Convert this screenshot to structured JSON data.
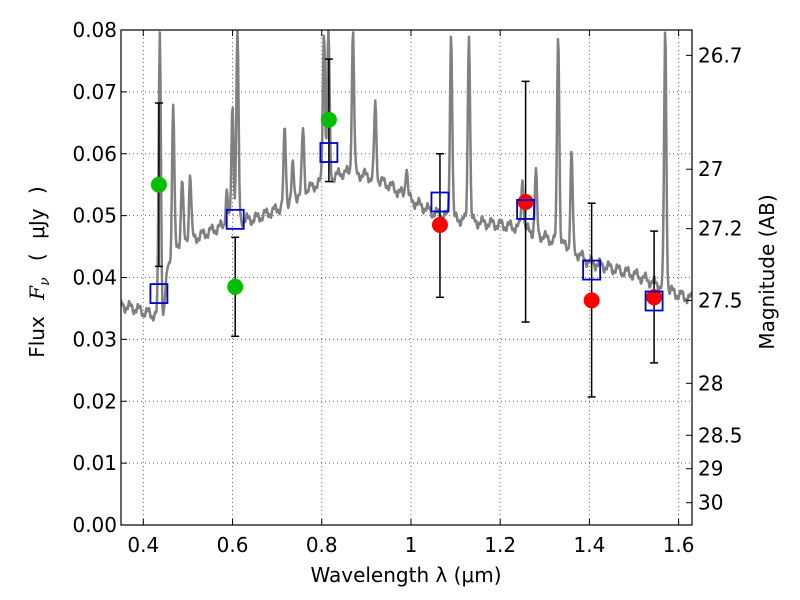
{
  "chart_data": {
    "type": "scatter",
    "title": "",
    "xlabel": "Wavelength  λ (μm)",
    "ylabel_parts": [
      "Flux",
      "F",
      "ν",
      "(",
      "μJy",
      ")"
    ],
    "y2label": "Magnitude (AB)",
    "xlim": [
      0.35,
      1.63
    ],
    "ylim": [
      0.0,
      0.08
    ],
    "grid": true,
    "x_ticks": [
      0.4,
      0.6,
      0.8,
      1.0,
      1.2,
      1.4,
      1.6
    ],
    "x_tick_labels": [
      "0.4",
      "0.6",
      "0.8",
      "1",
      "1.2",
      "1.4",
      "1.6"
    ],
    "y_ticks": [
      0.0,
      0.01,
      0.02,
      0.03,
      0.04,
      0.05,
      0.06,
      0.07,
      0.08
    ],
    "y_tick_labels": [
      "0.00",
      "0.01",
      "0.02",
      "0.03",
      "0.04",
      "0.05",
      "0.06",
      "0.07",
      "0.08"
    ],
    "y2_ticks": [
      {
        "label": "26.7",
        "flux": 0.0759
      },
      {
        "label": "27",
        "flux": 0.0575
      },
      {
        "label": "27.2",
        "flux": 0.0479
      },
      {
        "label": "27.5",
        "flux": 0.0363
      },
      {
        "label": "28",
        "flux": 0.0229
      },
      {
        "label": "28.5",
        "flux": 0.0145
      },
      {
        "label": "29",
        "flux": 0.0091
      },
      {
        "label": "30",
        "flux": 0.0036
      }
    ],
    "colors": {
      "spectrum": "#808080",
      "green": "#00bf00",
      "red": "#ff0000",
      "model_box": "#0000cc",
      "errorbar": "#000000",
      "grid": "#666666"
    },
    "spectrum": {
      "continuum": [
        [
          0.35,
          0.0355
        ],
        [
          0.38,
          0.035
        ],
        [
          0.4,
          0.0345
        ],
        [
          0.42,
          0.034
        ],
        [
          0.445,
          0.0335
        ],
        [
          0.455,
          0.042
        ],
        [
          0.48,
          0.0455
        ],
        [
          0.52,
          0.0465
        ],
        [
          0.56,
          0.0478
        ],
        [
          0.6,
          0.049
        ],
        [
          0.65,
          0.0495
        ],
        [
          0.7,
          0.051
        ],
        [
          0.75,
          0.0535
        ],
        [
          0.8,
          0.0555
        ],
        [
          0.85,
          0.057
        ],
        [
          0.9,
          0.0565
        ],
        [
          0.95,
          0.055
        ],
        [
          1.0,
          0.0525
        ],
        [
          1.05,
          0.0505
        ],
        [
          1.1,
          0.0495
        ],
        [
          1.15,
          0.049
        ],
        [
          1.2,
          0.0485
        ],
        [
          1.25,
          0.048
        ],
        [
          1.3,
          0.0465
        ],
        [
          1.35,
          0.045
        ],
        [
          1.4,
          0.0425
        ],
        [
          1.45,
          0.0415
        ],
        [
          1.5,
          0.0405
        ],
        [
          1.55,
          0.039
        ],
        [
          1.6,
          0.0372
        ],
        [
          1.63,
          0.0365
        ]
      ],
      "lines": [
        {
          "x": 0.437,
          "peak": 0.08
        },
        {
          "x": 0.467,
          "peak": 0.068
        },
        {
          "x": 0.487,
          "peak": 0.056
        },
        {
          "x": 0.505,
          "peak": 0.057
        },
        {
          "x": 0.587,
          "peak": 0.054
        },
        {
          "x": 0.6,
          "peak": 0.068
        },
        {
          "x": 0.611,
          "peak": 0.08
        },
        {
          "x": 0.717,
          "peak": 0.064
        },
        {
          "x": 0.735,
          "peak": 0.058
        },
        {
          "x": 0.758,
          "peak": 0.064
        },
        {
          "x": 0.805,
          "peak": 0.08
        },
        {
          "x": 0.815,
          "peak": 0.08
        },
        {
          "x": 0.87,
          "peak": 0.08
        },
        {
          "x": 0.92,
          "peak": 0.068
        },
        {
          "x": 0.99,
          "peak": 0.058
        },
        {
          "x": 1.09,
          "peak": 0.08
        },
        {
          "x": 1.13,
          "peak": 0.08
        },
        {
          "x": 1.25,
          "peak": 0.056
        },
        {
          "x": 1.28,
          "peak": 0.057
        },
        {
          "x": 1.33,
          "peak": 0.08
        },
        {
          "x": 1.36,
          "peak": 0.06
        },
        {
          "x": 1.57,
          "peak": 0.08
        }
      ]
    },
    "series": [
      {
        "name": "",
        "marker": "circle",
        "color": "green",
        "points": [
          {
            "x": 0.435,
            "y": 0.055,
            "ylo": 0.0418,
            "yhi": 0.0682
          },
          {
            "x": 0.606,
            "y": 0.0385,
            "ylo": 0.0305,
            "yhi": 0.0465
          },
          {
            "x": 0.816,
            "y": 0.0655,
            "ylo": 0.0555,
            "yhi": 0.0753
          }
        ]
      },
      {
        "name": "",
        "marker": "circle",
        "color": "red",
        "points": [
          {
            "x": 1.065,
            "y": 0.0485,
            "ylo": 0.0368,
            "yhi": 0.06
          },
          {
            "x": 1.257,
            "y": 0.0522,
            "ylo": 0.0328,
            "yhi": 0.0717
          },
          {
            "x": 1.405,
            "y": 0.0363,
            "ylo": 0.0207,
            "yhi": 0.052
          },
          {
            "x": 1.545,
            "y": 0.0368,
            "ylo": 0.0262,
            "yhi": 0.0475
          }
        ]
      },
      {
        "name": "",
        "marker": "open-square",
        "color": "model_box",
        "points": [
          {
            "x": 0.435,
            "y": 0.0374
          },
          {
            "x": 0.606,
            "y": 0.0494
          },
          {
            "x": 0.816,
            "y": 0.0602
          },
          {
            "x": 1.065,
            "y": 0.0522
          },
          {
            "x": 1.257,
            "y": 0.051
          },
          {
            "x": 1.405,
            "y": 0.0412
          },
          {
            "x": 1.545,
            "y": 0.0362
          }
        ]
      }
    ]
  }
}
